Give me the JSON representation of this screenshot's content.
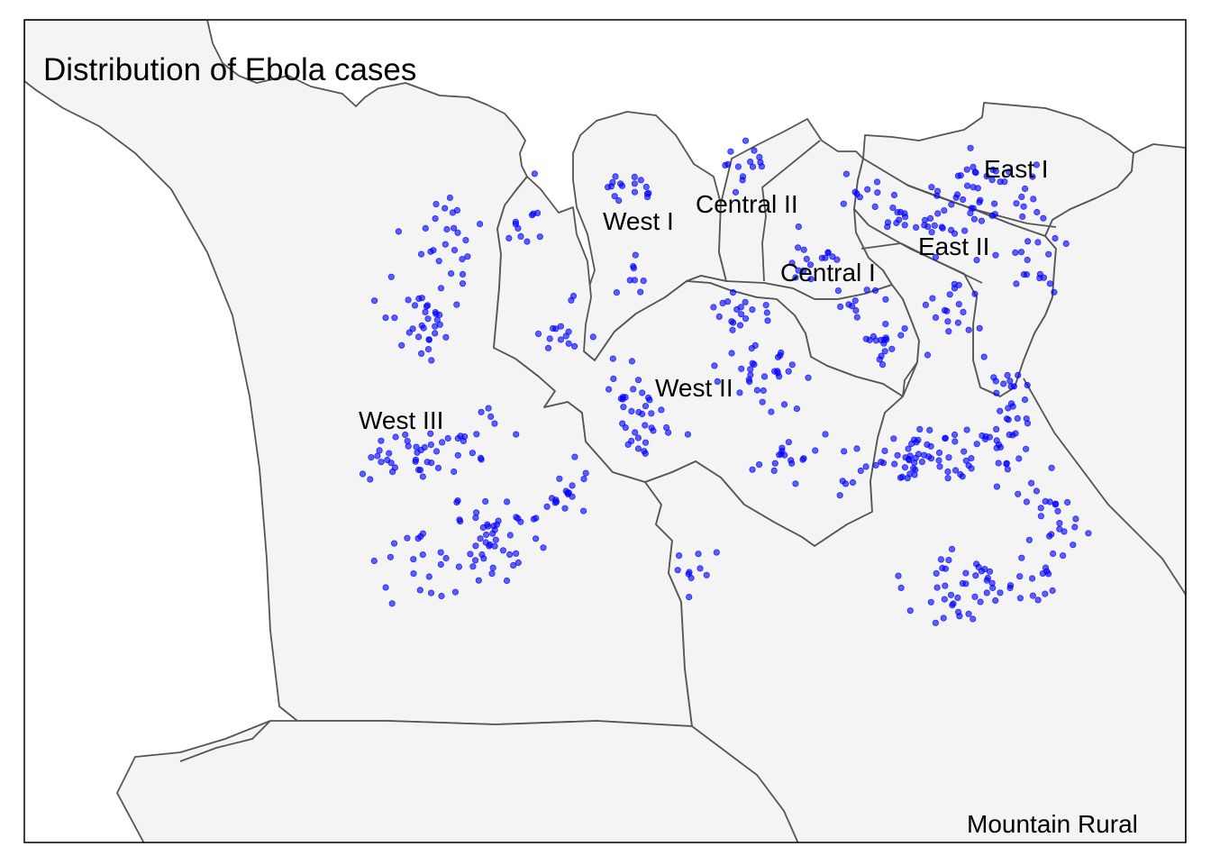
{
  "title": "Distribution of Ebola cases",
  "colors": {
    "point": "#0000ff",
    "land": "#f4f4f4",
    "border": "#555555",
    "frame": "#000000"
  },
  "regions": [
    {
      "id": "west-i",
      "label": "West I"
    },
    {
      "id": "central-ii",
      "label": "Central II"
    },
    {
      "id": "central-i",
      "label": "Central I"
    },
    {
      "id": "east-i",
      "label": "East I"
    },
    {
      "id": "east-ii",
      "label": "East II"
    },
    {
      "id": "west-ii",
      "label": "West II"
    },
    {
      "id": "west-iii",
      "label": "West III"
    },
    {
      "id": "mountain-rural",
      "label": "Mountain Rural"
    }
  ]
}
